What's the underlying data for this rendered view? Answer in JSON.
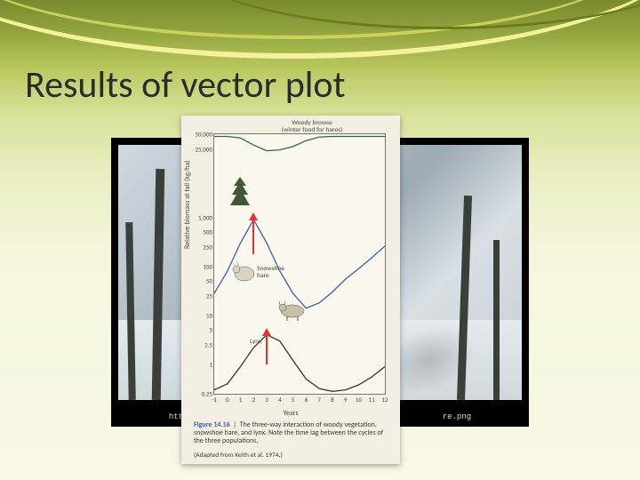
{
  "slide": {
    "title": "Results of vector plot",
    "background_gradient": [
      "#7a8a2e",
      "#8fa13a",
      "#b8c85e",
      "#d7e29a",
      "#e8eec0",
      "#f3f6dc",
      "#f7f9e6"
    ],
    "swoosh_colors": [
      "#f4f29a",
      "#c9d35c",
      "#6b7a1e"
    ]
  },
  "photo": {
    "frame_color": "#000000",
    "caption_partial_left": "htt",
    "caption_partial_right": "re.png"
  },
  "figure": {
    "background_color": "#f4efe3",
    "chart_bg": "#faf7ee",
    "chart_border": "#7a7468",
    "y_axis_label": "Relative biomass at fall (kg/ha)",
    "x_axis_label": "Years",
    "y_scale": "log",
    "y_ticks": [
      0.25,
      1,
      2.5,
      5,
      10,
      25,
      50,
      100,
      250,
      500,
      1000,
      25000,
      50000
    ],
    "x_ticks": [
      -1,
      0,
      1,
      2,
      3,
      4,
      5,
      6,
      7,
      8,
      9,
      10,
      11,
      12
    ],
    "x_range": [
      -1,
      12
    ],
    "series": {
      "woody_browse": {
        "label": "Woody browse\n(winter food for hares)",
        "color": "#2f6b3a",
        "line_width": 1.3,
        "points": [
          [
            -1,
            45000
          ],
          [
            0,
            45000
          ],
          [
            1,
            42000
          ],
          [
            2,
            30000
          ],
          [
            3,
            23000
          ],
          [
            4,
            24000
          ],
          [
            5,
            28000
          ],
          [
            6,
            37000
          ],
          [
            7,
            44000
          ],
          [
            8,
            45000
          ],
          [
            9,
            45000
          ],
          [
            10,
            45000
          ],
          [
            11,
            45000
          ],
          [
            12,
            45000
          ]
        ]
      },
      "snowshoe_hare": {
        "label": "Snowshoe\nhare",
        "color": "#3a5fa8",
        "line_width": 1.3,
        "points": [
          [
            -1,
            28
          ],
          [
            0,
            80
          ],
          [
            1,
            300
          ],
          [
            2,
            900
          ],
          [
            3,
            300
          ],
          [
            4,
            80
          ],
          [
            5,
            28
          ],
          [
            6,
            14
          ],
          [
            7,
            18
          ],
          [
            8,
            30
          ],
          [
            9,
            55
          ],
          [
            10,
            90
          ],
          [
            11,
            150
          ],
          [
            12,
            260
          ]
        ]
      },
      "lynx": {
        "label": "Lynx",
        "color": "#3a342c",
        "line_width": 1.3,
        "points": [
          [
            -1,
            0.3
          ],
          [
            0,
            0.4
          ],
          [
            1,
            0.9
          ],
          [
            2,
            2.2
          ],
          [
            3,
            4.0
          ],
          [
            4,
            3.0
          ],
          [
            5,
            1.2
          ],
          [
            6,
            0.5
          ],
          [
            7,
            0.32
          ],
          [
            8,
            0.28
          ],
          [
            9,
            0.3
          ],
          [
            10,
            0.38
          ],
          [
            11,
            0.55
          ],
          [
            12,
            0.9
          ]
        ]
      }
    },
    "annotations": {
      "red_arrows": [
        {
          "x": 2,
          "y_from": 180,
          "y_to": 900
        },
        {
          "x": 3,
          "y_from": 1.0,
          "y_to": 4.0
        }
      ],
      "arrow_color": "#dd3333"
    },
    "icons": [
      {
        "name": "conifer-tree-icon",
        "near_series": "woody_browse"
      },
      {
        "name": "hare-icon",
        "near_series": "snowshoe_hare"
      },
      {
        "name": "lynx-icon",
        "near_series": "lynx"
      }
    ],
    "caption": {
      "fig_number": "Figure 14.16",
      "text": "The three-way interaction of woody vegetation, snowshoe hare, and lynx. Note the time lag between the cycles of the three populations.",
      "adapted": "(Adapted from Keith et al. 1974.)"
    }
  }
}
